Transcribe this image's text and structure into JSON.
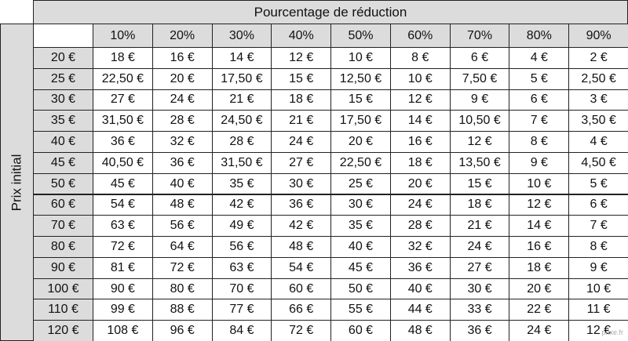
{
  "header": {
    "title": "Pourcentage de réduction",
    "row_axis": "Prix initial"
  },
  "table": {
    "columns": [
      "10%",
      "20%",
      "30%",
      "40%",
      "50%",
      "60%",
      "70%",
      "80%",
      "90%"
    ],
    "rows": [
      [
        "20 €",
        "18 €",
        "16 €",
        "14 €",
        "12 €",
        "10 €",
        "8 €",
        "6 €",
        "4 €",
        "2 €"
      ],
      [
        "25 €",
        "22,50 €",
        "20 €",
        "17,50 €",
        "15 €",
        "12,50 €",
        "10 €",
        "7,50 €",
        "5 €",
        "2,50 €"
      ],
      [
        "30 €",
        "27 €",
        "24 €",
        "21 €",
        "18 €",
        "15 €",
        "12 €",
        "9 €",
        "6 €",
        "3 €"
      ],
      [
        "35 €",
        "31,50 €",
        "28 €",
        "24,50 €",
        "21 €",
        "17,50 €",
        "14 €",
        "10,50 €",
        "7 €",
        "3,50 €"
      ],
      [
        "40 €",
        "36 €",
        "32 €",
        "28 €",
        "24 €",
        "20 €",
        "16 €",
        "12 €",
        "8 €",
        "4 €"
      ],
      [
        "45 €",
        "40,50 €",
        "36 €",
        "31,50 €",
        "27 €",
        "22,50 €",
        "18 €",
        "13,50 €",
        "9 €",
        "4,50 €"
      ],
      [
        "50 €",
        "45 €",
        "40 €",
        "35 €",
        "30 €",
        "25 €",
        "20 €",
        "15 €",
        "10 €",
        "5 €"
      ],
      [
        "60 €",
        "54 €",
        "48 €",
        "42 €",
        "36 €",
        "30 €",
        "24 €",
        "18 €",
        "12 €",
        "6 €"
      ],
      [
        "70 €",
        "63 €",
        "56 €",
        "49 €",
        "42 €",
        "35 €",
        "28 €",
        "21 €",
        "14 €",
        "7 €"
      ],
      [
        "80 €",
        "72 €",
        "64 €",
        "56 €",
        "48 €",
        "40 €",
        "32 €",
        "24 €",
        "16 €",
        "8 €"
      ],
      [
        "90 €",
        "81 €",
        "72 €",
        "63 €",
        "54 €",
        "45 €",
        "36 €",
        "27 €",
        "18 €",
        "9 €"
      ],
      [
        "100 €",
        "90 €",
        "80 €",
        "70 €",
        "60 €",
        "50 €",
        "40 €",
        "30 €",
        "20 €",
        "10 €"
      ],
      [
        "110 €",
        "99 €",
        "88 €",
        "77 €",
        "66 €",
        "55 €",
        "44 €",
        "33 €",
        "22 €",
        "11 €"
      ],
      [
        "120 €",
        "108 €",
        "96 €",
        "84 €",
        "72 €",
        "60 €",
        "48 €",
        "36 €",
        "24 €",
        "12 €"
      ]
    ]
  },
  "watermark": "prixe.fr"
}
